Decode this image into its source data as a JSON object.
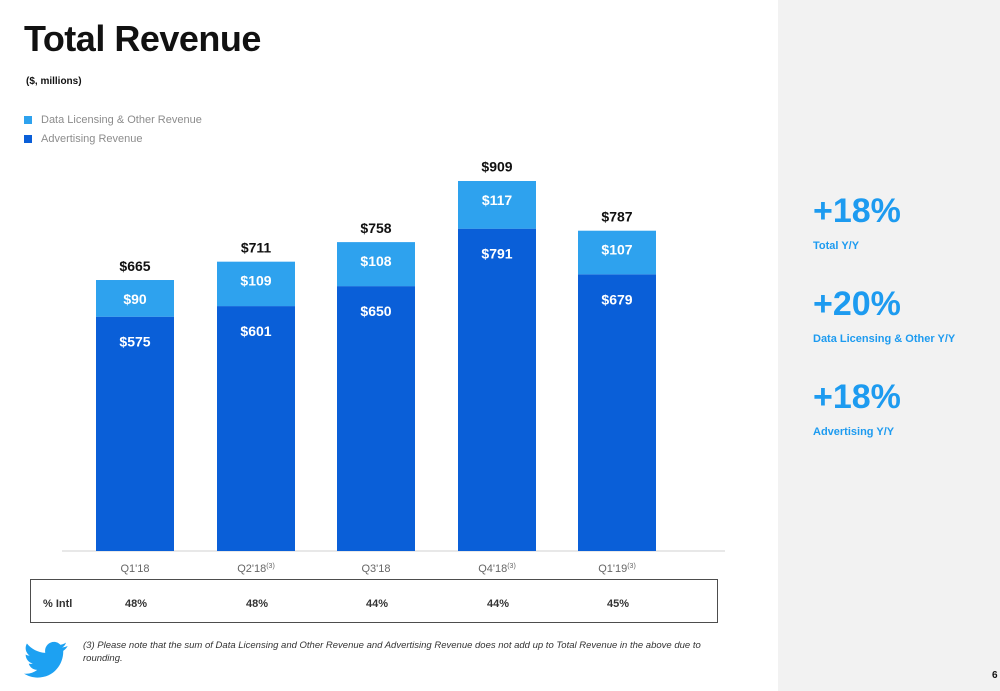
{
  "header": {
    "title": "Total Revenue",
    "subtitle": "($, millions)"
  },
  "legend": [
    {
      "label": "Data Licensing & Other Revenue",
      "color": "#2ea2ee"
    },
    {
      "label": "Advertising Revenue",
      "color": "#0a5fd8"
    }
  ],
  "chart_data": {
    "type": "bar",
    "stacked": true,
    "categories": [
      "Q1'18",
      "Q2'18",
      "Q3'18",
      "Q4'18",
      "Q1'19"
    ],
    "category_notes": [
      "",
      "(3)",
      "",
      "(3)",
      "(3)"
    ],
    "series": [
      {
        "name": "Advertising Revenue",
        "color": "#0a5fd8",
        "values": [
          575,
          601,
          650,
          791,
          679
        ],
        "labels": [
          "$575",
          "$601",
          "$650",
          "$791",
          "$679"
        ]
      },
      {
        "name": "Data Licensing & Other Revenue",
        "color": "#2ea2ee",
        "values": [
          90,
          109,
          108,
          117,
          107
        ],
        "labels": [
          "$90",
          "$109",
          "$108",
          "$117",
          "$107"
        ]
      }
    ],
    "totals": [
      665,
      711,
      758,
      909,
      787
    ],
    "total_labels": [
      "$665",
      "$711",
      "$758",
      "$909",
      "$787"
    ],
    "ylim": [
      0,
      1000
    ]
  },
  "stats": [
    {
      "value": "+18%",
      "label": "Total Y/Y"
    },
    {
      "value": "+20%",
      "label": "Data Licensing & Other Y/Y"
    },
    {
      "value": "+18%",
      "label": "Advertising Y/Y"
    }
  ],
  "intl": {
    "label": "% Intl",
    "values": [
      "48%",
      "48%",
      "44%",
      "44%",
      "45%"
    ]
  },
  "footnote": "(3) Please note that the sum of Data Licensing and Other Revenue and Advertising Revenue does not add up to Total Revenue in the above due to rounding.",
  "page_number": "6",
  "logo": {
    "icon": "twitter-bird-icon",
    "color": "#1da1f2"
  }
}
